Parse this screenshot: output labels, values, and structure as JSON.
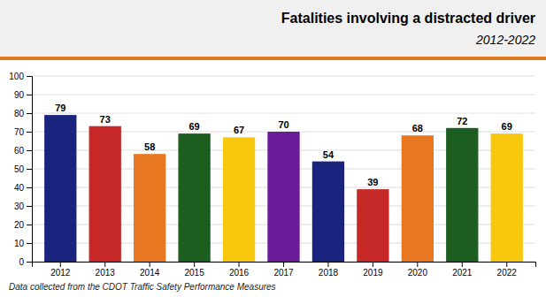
{
  "chart_data": {
    "type": "bar",
    "title": "Fatalities involving a distracted driver",
    "subtitle": "2012-2022",
    "annotations": [
      "Data collected from the CDOT Traffic Safety Performance Measures"
    ],
    "categories": [
      "2012",
      "2013",
      "2014",
      "2015",
      "2016",
      "2017",
      "2018",
      "2019",
      "2020",
      "2021",
      "2022"
    ],
    "values": [
      79,
      73,
      58,
      69,
      67,
      70,
      54,
      39,
      68,
      72,
      69
    ],
    "colors": [
      "#1a237e",
      "#c62828",
      "#e87722",
      "#1b5e20",
      "#f9c80e",
      "#6a1b9a",
      "#1a237e",
      "#c62828",
      "#e87722",
      "#1b5e20",
      "#f9c80e"
    ],
    "ylim": [
      0,
      100
    ],
    "yticks": [
      0,
      10,
      20,
      30,
      40,
      50,
      60,
      70,
      80,
      90,
      100
    ],
    "grid": true,
    "data_labels": true
  }
}
